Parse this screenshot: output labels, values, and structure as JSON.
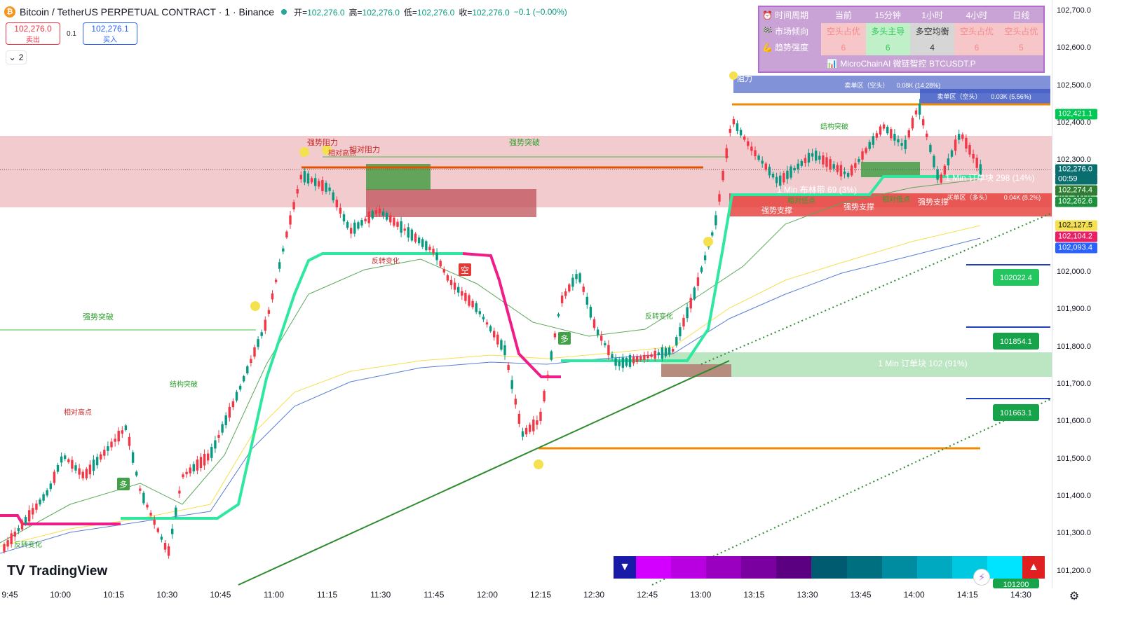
{
  "header": {
    "symbol": "Bitcoin / TetherUS PERPETUAL CONTRACT · 1 · Binance",
    "open_label": "开=",
    "open": "102,276.0",
    "high_label": "高=",
    "high": "102,276.0",
    "low_label": "低=",
    "low": "102,276.0",
    "close_label": "收=",
    "close": "102,276.0",
    "change": "−0.1 (−0.00%)"
  },
  "trade": {
    "sell_price": "102,276.0",
    "sell_label": "卖出",
    "spread": "0.1",
    "buy_price": "102,276.1",
    "buy_label": "买入"
  },
  "collapse": {
    "count": "2"
  },
  "info_table": {
    "head": [
      "时间周期",
      "当前",
      "15分钟",
      "1小时",
      "4小时",
      "日线"
    ],
    "row1_label": "市场倾向",
    "row1": [
      "空头占优",
      "多头主导",
      "多空均衡",
      "空头占优",
      "空头占优"
    ],
    "row2_label": "趋势强度",
    "row2": [
      "6",
      "6",
      "4",
      "6",
      "5"
    ],
    "footer": "MicroChainAI 微链智控 BTCUSDT.P",
    "colors": {
      "bear_bg": "#f7c6c9",
      "bear_fg": "#f58a8a",
      "bull_bg": "#bff0c8",
      "bull_fg": "#35c85a",
      "neutral_bg": "#d6d6d6",
      "neutral_fg": "#333333"
    }
  },
  "price_axis": {
    "ticks": [
      "102,700.0",
      "102,600.0",
      "102,500.0",
      "102,400.0",
      "102,300.0",
      "102,200.0",
      "102,100.0",
      "102,000.0",
      "101,900.0",
      "101,800.0",
      "101,700.0",
      "101,600.0",
      "101,500.0",
      "101,400.0",
      "101,300.0",
      "101,200.0"
    ],
    "badges": [
      {
        "text": "102,421.1",
        "bg": "#00c853",
        "fg": "#ffffff"
      },
      {
        "text": "102,276.0",
        "bg": "#0b6e6e",
        "fg": "#ffffff"
      },
      {
        "text": "00:59",
        "bg": "#0b6e6e",
        "fg": "#ffffff"
      },
      {
        "text": "102,274.4",
        "bg": "#2e7d32",
        "fg": "#ffffff"
      },
      {
        "text": "102,262.6",
        "bg": "#1b8f3a",
        "fg": "#ffffff"
      },
      {
        "text": "102,127.5",
        "bg": "#f5e050",
        "fg": "#131722"
      },
      {
        "text": "102,104.2",
        "bg": "#e91e63",
        "fg": "#ffffff"
      },
      {
        "text": "102,093.4",
        "bg": "#2962ff",
        "fg": "#ffffff"
      }
    ]
  },
  "time_axis": [
    "9:45",
    "10:00",
    "10:15",
    "10:30",
    "10:45",
    "11:00",
    "11:15",
    "11:30",
    "11:45",
    "12:00",
    "12:15",
    "12:30",
    "12:45",
    "13:00",
    "13:15",
    "13:30",
    "13:45",
    "14:00",
    "14:15",
    "14:30"
  ],
  "chart_labels": {
    "strong_breakout": "强势突破",
    "structure_break": "结构突破",
    "rel_high": "相对高点",
    "rel_resistance": "相对阻力",
    "strong_resistance": "强势阻力",
    "resistance": "阻力",
    "reversal": "反转变化",
    "strong_support": "强势支撑",
    "rel_low": "相对低点",
    "long": "多",
    "short": "空",
    "order_block_1": "1 Min 订单块 298 (14%)",
    "order_block_2": "1 Min 订单块 102 (91%)",
    "bollinger": "1 Min 布林带 69 (3%)",
    "sell_zone_1": "卖单区（空头）",
    "sell_zone_1_val": "0.08K (14.28%)",
    "sell_zone_2": "卖单区（空头）",
    "sell_zone_2_val": "0.03K (5.56%)",
    "buy_zone": "买单区（多头）",
    "buy_zone_val": "0.04K (8.2%)",
    "level_1": "102022.4",
    "level_2": "101854.1",
    "level_3": "101663.1",
    "level_4": "101200"
  },
  "branding": {
    "name": "TradingView"
  }
}
